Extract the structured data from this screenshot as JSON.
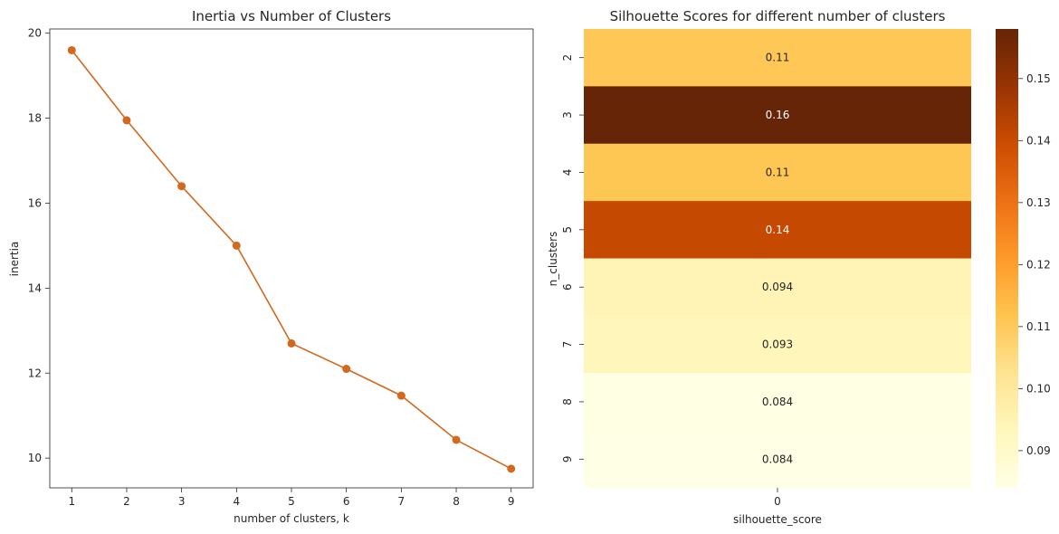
{
  "chart_data": [
    {
      "type": "line",
      "title": "Inertia vs Number of Clusters",
      "xlabel": "number of clusters, k",
      "ylabel": "inertia",
      "x": [
        1,
        2,
        3,
        4,
        5,
        6,
        7,
        8,
        9
      ],
      "y": [
        19.6,
        17.95,
        16.4,
        15.0,
        12.7,
        12.1,
        11.47,
        10.43,
        9.75
      ],
      "xlim": [
        0.6,
        9.4
      ],
      "ylim": [
        9.3,
        20.1
      ],
      "xticks": [
        1,
        2,
        3,
        4,
        5,
        6,
        7,
        8,
        9
      ],
      "yticks": [
        10,
        12,
        14,
        16,
        18,
        20
      ],
      "color": "#d2691e",
      "marker": "circle",
      "grid": false
    },
    {
      "type": "heatmap",
      "title": "Silhouette Scores for different number of clusters",
      "xlabel": "silhouette_score",
      "ylabel": "n_clusters",
      "columns": [
        "0"
      ],
      "rows": [
        "2",
        "3",
        "4",
        "5",
        "6",
        "7",
        "8",
        "9"
      ],
      "values": [
        0.1108,
        0.158,
        0.1112,
        0.1405,
        0.0945,
        0.0935,
        0.0842,
        0.084
      ],
      "annotations": [
        "0.11",
        "0.16",
        "0.11",
        "0.14",
        "0.094",
        "0.093",
        "0.084",
        "0.084"
      ],
      "colormap": "YlOrBr",
      "colorbar": {
        "range": [
          0.084,
          0.158
        ],
        "ticks": [
          "0.09",
          "0.10",
          "0.11",
          "0.12",
          "0.13",
          "0.14",
          "0.15"
        ],
        "tick_values": [
          0.09,
          0.1,
          0.11,
          0.12,
          0.13,
          0.14,
          0.15
        ]
      }
    }
  ]
}
